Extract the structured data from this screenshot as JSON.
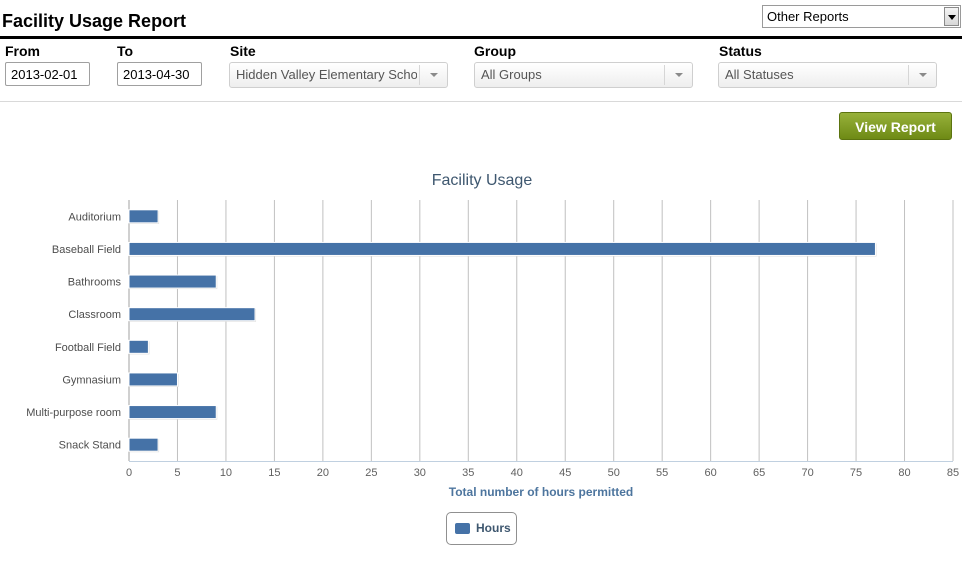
{
  "header": {
    "title": "Facility Usage Report",
    "other_reports": "Other Reports"
  },
  "filters": {
    "from_label": "From",
    "from_value": "2013-02-01",
    "to_label": "To",
    "to_value": "2013-04-30",
    "site_label": "Site",
    "site_value": "Hidden Valley Elementary School",
    "group_label": "Group",
    "group_value": "All Groups",
    "status_label": "Status",
    "status_value": "All Statuses"
  },
  "actions": {
    "view_report": "View Report"
  },
  "chart_data": {
    "type": "bar",
    "orientation": "horizontal",
    "title": "Facility Usage",
    "xlabel": "Total number of hours permitted",
    "ylabel": "",
    "categories": [
      "Auditorium",
      "Baseball Field",
      "Bathrooms",
      "Classroom",
      "Football Field",
      "Gymnasium",
      "Multi-purpose room",
      "Snack Stand"
    ],
    "series": [
      {
        "name": "Hours",
        "values": [
          3,
          77,
          9,
          13,
          2,
          5,
          9,
          3
        ]
      }
    ],
    "xlim": [
      0,
      85
    ],
    "ticks": [
      0,
      5,
      10,
      15,
      20,
      25,
      30,
      35,
      40,
      45,
      50,
      55,
      60,
      65,
      70,
      75,
      80,
      85
    ],
    "grid": true,
    "legend": "bottom-center",
    "colors": {
      "bar": "#4572a7",
      "grid": "#c0c0c0",
      "title": "#3e576f",
      "axis_title": "#4d759e"
    }
  }
}
